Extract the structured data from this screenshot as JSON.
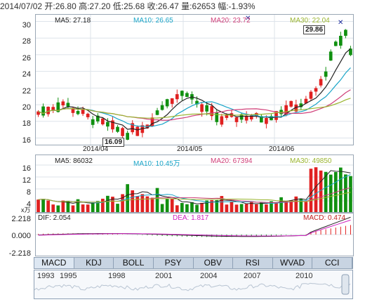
{
  "header": {
    "text": "2014/07/02 开:26.80 高:27.20 低:25.68 收:26.47 量:62653 幅:-1.93%"
  },
  "price_panel": {
    "legend": [
      {
        "label": "MA5: 27.18",
        "color": "#222222"
      },
      {
        "label": "MA10: 26.65",
        "color": "#1aa5c8"
      },
      {
        "label": "MA20: 23.72",
        "color": "#d0407a"
      },
      {
        "label": "MA30: 22.04",
        "color": "#9ab530"
      }
    ],
    "y_ticks": [
      "30",
      "28",
      "26",
      "24",
      "22",
      "20",
      "18",
      "16"
    ],
    "x_labels": [
      "2014/04",
      "2014/05",
      "2014/06"
    ],
    "high_marker": "29.86",
    "low_marker": "16.09"
  },
  "volume_panel": {
    "legend": [
      {
        "label": "MA5: 86032",
        "color": "#222222"
      },
      {
        "label": "MA10: 10.45万",
        "color": "#1aa5c8"
      },
      {
        "label": "MA20: 67394",
        "color": "#d0407a"
      },
      {
        "label": "MA30: 49850",
        "color": "#9ab530"
      }
    ],
    "y_ticks": [
      "16",
      "12",
      "8",
      "4"
    ],
    "unit": "x万"
  },
  "macd_panel": {
    "legend": [
      {
        "label": "DIF: 2.054",
        "color": "#222222"
      },
      {
        "label": "DEA: 1.817",
        "color": "#d020c0"
      },
      {
        "label": "MACD: 0.474",
        "color": "#c02020"
      }
    ],
    "y_ticks": [
      "2.218",
      "0.000",
      "-2.218"
    ]
  },
  "indicator_tabs": [
    "MACD",
    "KDJ",
    "BOLL",
    "PSY",
    "OBV",
    "RSI",
    "WVAD",
    "CCI"
  ],
  "active_tab": "MACD",
  "navigator": {
    "years": [
      "1993",
      "1995",
      "1998",
      "2001",
      "2004",
      "2007",
      "2010"
    ]
  },
  "colors": {
    "up": "#e02020",
    "down": "#109010",
    "grid": "#dde3ea"
  }
}
